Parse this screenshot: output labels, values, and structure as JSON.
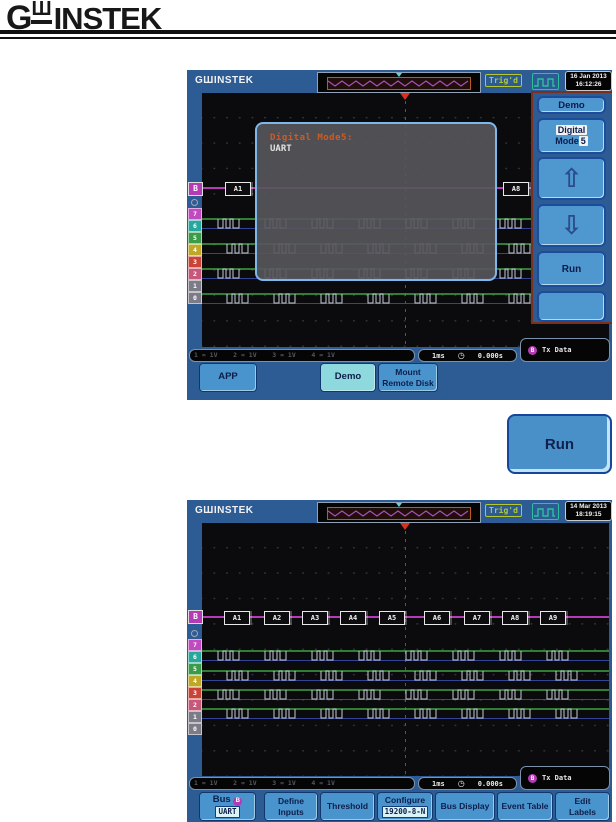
{
  "page": {
    "logo": {
      "g": "G",
      "w": "Ш",
      "rest": "INSTEK"
    }
  },
  "colors": {
    "scope_background": "#2d5b94",
    "softkey_blue": "#4a94cd",
    "selected_cyan": "#8ed9de",
    "bus_magenta": "#b53ab5",
    "trace_high_green": "#3fa244",
    "trace_low_blue": "#3b4fb0",
    "trig_yellow_green": "#b5c832",
    "dialog_title_orange": "#d05a22",
    "panel_border_maroon": "#79301e",
    "trigger_marker_red": "#da3020"
  },
  "icons": {
    "up_arrow": "⇧",
    "down_arrow": "⇩",
    "clock": "◷"
  },
  "run_button": {
    "label": "Run"
  },
  "scope1": {
    "logo": "GШINSTEK",
    "trig_badge": "Trig'd",
    "date": "16 Jan 2013",
    "time": "16:12:26",
    "dialog": {
      "title": "Digital Mode5:",
      "value": "UART"
    },
    "bus_label": "B",
    "bus_boxes": [
      "A1",
      "A8"
    ],
    "digital_channels": [
      "7",
      "6",
      "5",
      "4",
      "3",
      "2",
      "1",
      "0"
    ],
    "status": {
      "channels_text": "1 = 1V    2 = 1V    3 = 1V    4 = 1V",
      "timebase": "1ms",
      "offset": "0.000s",
      "bus": "B",
      "bus_text": "Tx Data"
    },
    "side_menu": {
      "title": "Demo",
      "mode_line1": "Digital",
      "mode_line2_a": "Mode",
      "mode_line2_b": "5",
      "run": "Run"
    },
    "bottom_menu": {
      "app": "APP",
      "demo": "Demo",
      "mount_l1": "Mount",
      "mount_l2": "Remote Disk"
    }
  },
  "scope2": {
    "logo": "GШINSTEK",
    "trig_badge": "Trig'd",
    "date": "14 Mar 2013",
    "time": "18:19:15",
    "bus_label": "B",
    "bus_boxes": [
      "A1",
      "A2",
      "A3",
      "A4",
      "A5",
      "A6",
      "A7",
      "A8",
      "A9"
    ],
    "digital_channels": [
      "7",
      "6",
      "5",
      "4",
      "3",
      "2",
      "1",
      "0"
    ],
    "status": {
      "channels_text": "1 = 1V    2 = 1V    3 = 1V    4 = 1V",
      "timebase": "1ms",
      "offset": "0.000s",
      "bus": "B",
      "bus_text": "Tx Data"
    },
    "bottom_menu": {
      "bus_l1": "Bus",
      "bus_badge": "B",
      "bus_val": "UART",
      "define_l1": "Define",
      "define_l2": "Inputs",
      "threshold": "Threshold",
      "configure_l1": "Configure",
      "configure_val": "19200-8-N",
      "bus_display": "Bus Display",
      "event_table": "Event Table",
      "edit_l1": "Edit",
      "edit_l2": "Labels"
    }
  }
}
